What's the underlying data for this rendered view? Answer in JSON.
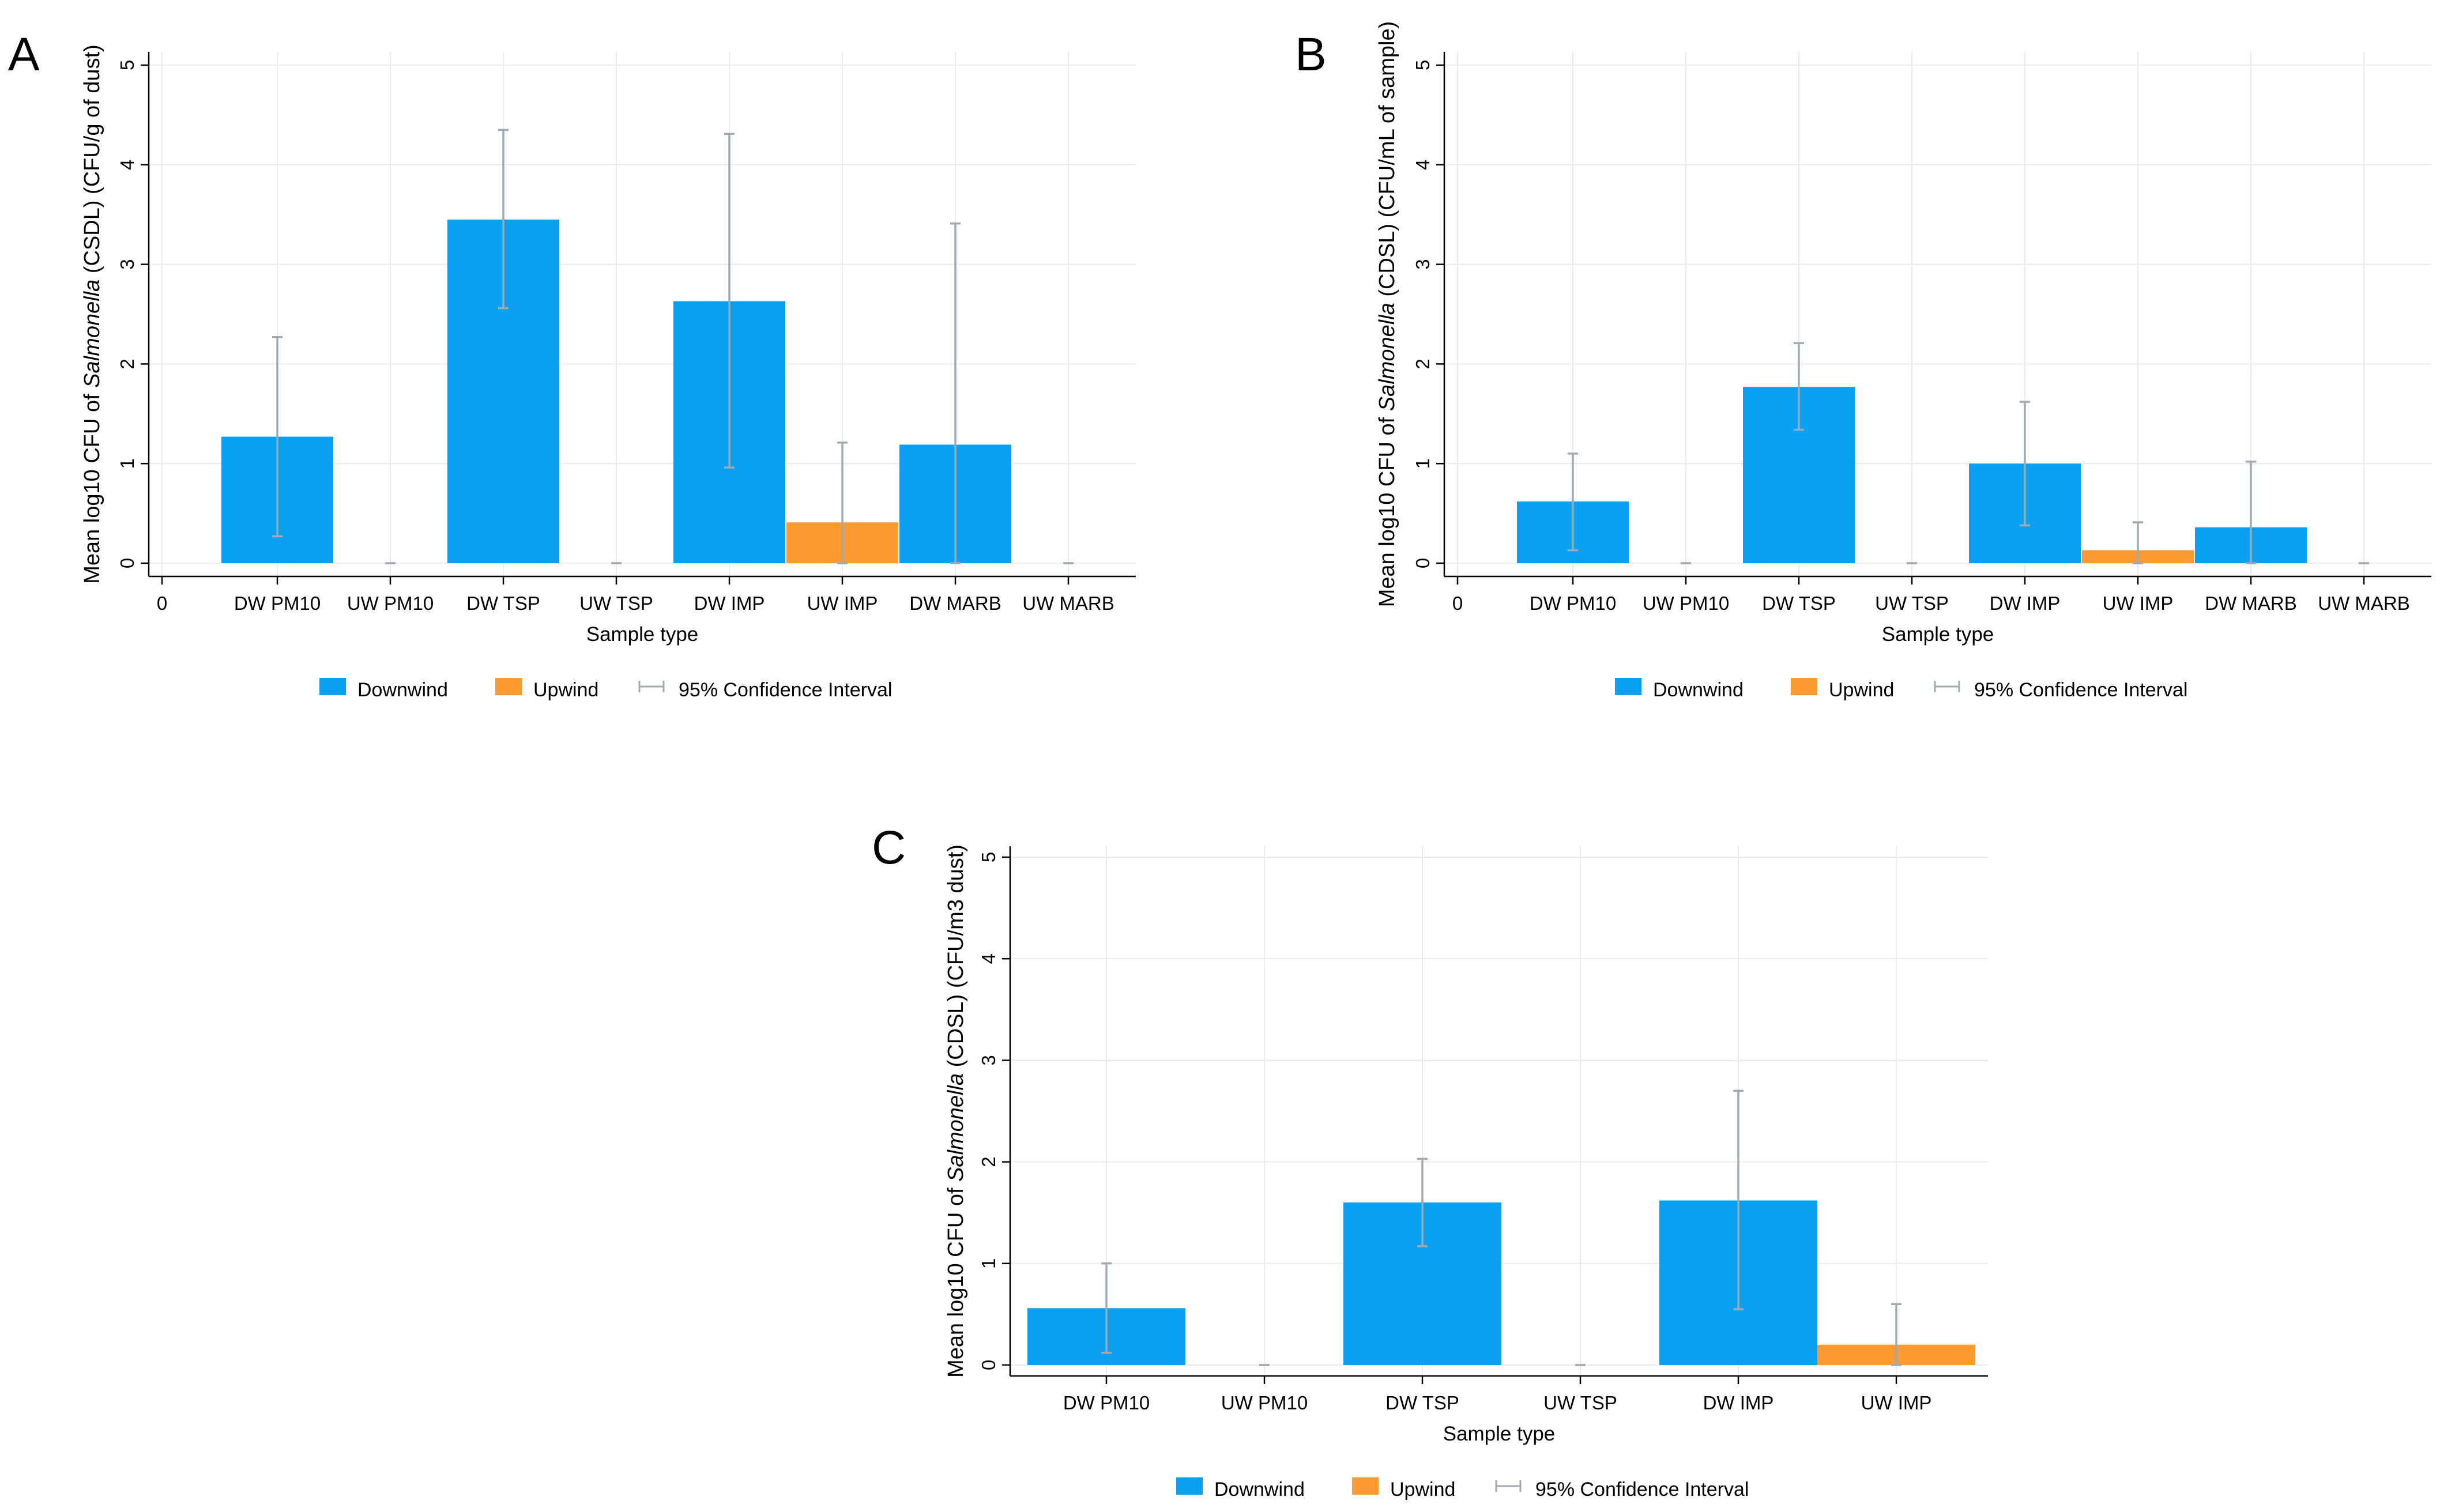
{
  "figure": {
    "legend": {
      "downwind": "Downwind",
      "upwind": "Upwind",
      "ci": "95% Confidence Interval"
    },
    "colors": {
      "downwind": "#0aa1f2",
      "upwind": "#fd9b33",
      "ci": "#a0aab3",
      "grid": "#eaeaea",
      "axis": "#000000"
    }
  },
  "chart_data": [
    {
      "panel": "A",
      "type": "bar",
      "title": "",
      "xlabel": "Sample type",
      "ylabel_prefix": "Mean log10 CFU of ",
      "ylabel_italic": "Salmonella",
      "ylabel_suffix": " (CSDL) (CFU/g of dust)",
      "ylim": [
        0,
        5
      ],
      "yticks": [
        0,
        1,
        2,
        3,
        4,
        5
      ],
      "x_origin_label": "0",
      "categories": [
        "DW PM10",
        "UW PM10",
        "DW TSP",
        "UW TSP",
        "DW IMP",
        "UW IMP",
        "DW MARB",
        "UW MARB"
      ],
      "series": [
        {
          "name": "Downwind",
          "values": [
            1.27,
            0,
            3.45,
            0,
            2.63,
            0,
            1.19,
            0
          ]
        },
        {
          "name": "Upwind",
          "values": [
            0,
            0,
            0,
            0,
            0,
            0.41,
            0,
            0
          ]
        }
      ],
      "ci_low": [
        0.27,
        0,
        2.56,
        0,
        0.96,
        0,
        0,
        0
      ],
      "ci_high": [
        2.27,
        0,
        4.35,
        0,
        4.31,
        1.21,
        3.41,
        0
      ]
    },
    {
      "panel": "B",
      "type": "bar",
      "title": "",
      "xlabel": "Sample type",
      "ylabel_prefix": "Mean log10 CFU of ",
      "ylabel_italic": "Salmonella",
      "ylabel_suffix": " (CDSL) (CFU/mL of sample)",
      "ylim": [
        0,
        5
      ],
      "yticks": [
        0,
        1,
        2,
        3,
        4,
        5
      ],
      "x_origin_label": "0",
      "categories": [
        "DW PM10",
        "UW PM10",
        "DW TSP",
        "UW TSP",
        "DW IMP",
        "UW IMP",
        "DW MARB",
        "UW MARB"
      ],
      "series": [
        {
          "name": "Downwind",
          "values": [
            0.62,
            0,
            1.77,
            0,
            1.0,
            0,
            0.36,
            0
          ]
        },
        {
          "name": "Upwind",
          "values": [
            0,
            0,
            0,
            0,
            0,
            0.13,
            0,
            0
          ]
        }
      ],
      "ci_low": [
        0.13,
        0,
        1.34,
        0,
        0.38,
        0,
        0,
        0
      ],
      "ci_high": [
        1.1,
        0,
        2.21,
        0,
        1.62,
        0.41,
        1.02,
        0
      ]
    },
    {
      "panel": "C",
      "type": "bar",
      "title": "",
      "xlabel": "Sample type",
      "ylabel_prefix": "Mean log10 CFU of ",
      "ylabel_italic": "Salmonella",
      "ylabel_suffix": " (CDSL) (CFU/m3 dust)",
      "ylim": [
        0,
        5
      ],
      "yticks": [
        0,
        1,
        2,
        3,
        4,
        5
      ],
      "x_origin_label": "",
      "categories": [
        "DW PM10",
        "UW PM10",
        "DW TSP",
        "UW TSP",
        "DW IMP",
        "UW IMP"
      ],
      "series": [
        {
          "name": "Downwind",
          "values": [
            0.56,
            0,
            1.6,
            0,
            1.62,
            0
          ]
        },
        {
          "name": "Upwind",
          "values": [
            0,
            0,
            0,
            0,
            0,
            0.2
          ]
        }
      ],
      "ci_low": [
        0.12,
        0,
        1.17,
        0,
        0.55,
        0
      ],
      "ci_high": [
        1.0,
        0,
        2.03,
        0,
        2.7,
        0.6
      ]
    }
  ]
}
